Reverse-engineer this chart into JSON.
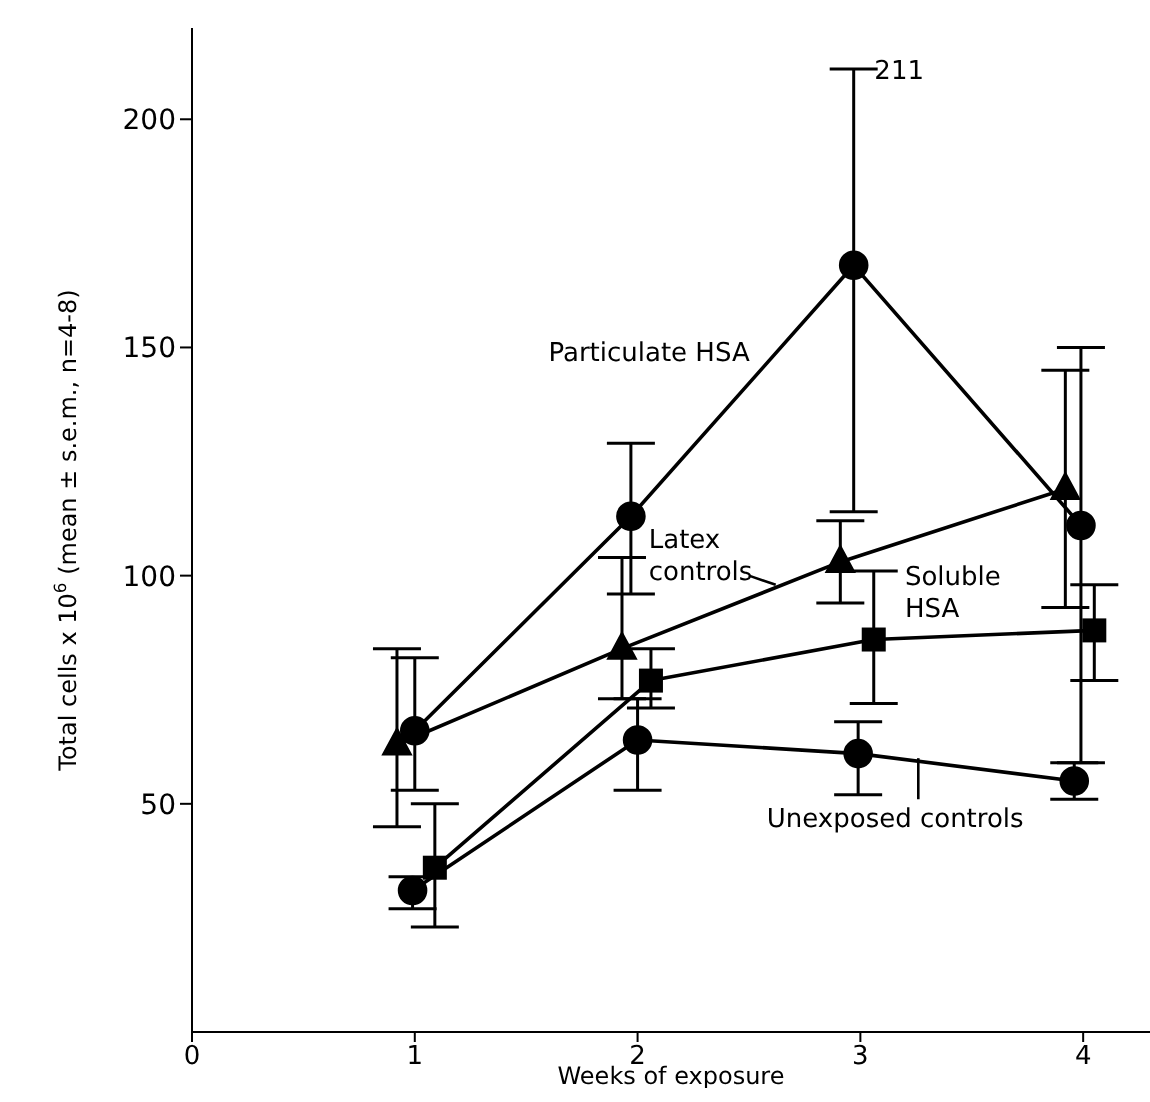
{
  "chart_data": {
    "type": "line",
    "xlabel": "Weeks of exposure",
    "ylabel": "Total cells x 10$^{6}$ (mean ± s.e.m., n=4-8)",
    "xlim": [
      0,
      4.3
    ],
    "ylim": [
      0,
      220
    ],
    "xticks": [
      0,
      1,
      2,
      3,
      4
    ],
    "yticks": [
      50,
      100,
      150,
      200
    ],
    "line_style": "solid",
    "series": [
      {
        "name": "Particulate HSA",
        "color": "#000000",
        "marker": "circle",
        "x": [
          1.0,
          1.97,
          2.97,
          3.99
        ],
        "values": [
          66,
          113,
          168,
          111
        ],
        "errors": [
          [
            53,
            82
          ],
          [
            96,
            129
          ],
          [
            114,
            211
          ],
          [
            59,
            150
          ]
        ]
      },
      {
        "name": "Latex controls",
        "color": "#000000",
        "marker": "triangle",
        "x": [
          0.92,
          1.93,
          2.91,
          3.92
        ],
        "values": [
          63,
          84,
          103,
          119
        ],
        "errors": [
          [
            45,
            84
          ],
          [
            73,
            104
          ],
          [
            94,
            112
          ],
          [
            93,
            145
          ]
        ]
      },
      {
        "name": "Soluble HSA",
        "color": "#000000",
        "marker": "square",
        "x": [
          1.09,
          2.06,
          3.06,
          4.05
        ],
        "values": [
          36,
          77,
          86,
          88
        ],
        "errors": [
          [
            23,
            50
          ],
          [
            71,
            84
          ],
          [
            72,
            101
          ],
          [
            77,
            98
          ]
        ]
      },
      {
        "name": "Unexposed controls",
        "color": "#000000",
        "marker": "circle",
        "x": [
          0.99,
          2.0,
          2.99,
          3.96
        ],
        "values": [
          31,
          64,
          61,
          55
        ],
        "errors": [
          [
            27,
            34
          ],
          [
            53,
            73
          ],
          [
            52,
            68
          ],
          [
            51,
            59
          ]
        ]
      }
    ],
    "annotations": [
      {
        "text": "211",
        "x": 3,
        "y": 211
      }
    ]
  }
}
